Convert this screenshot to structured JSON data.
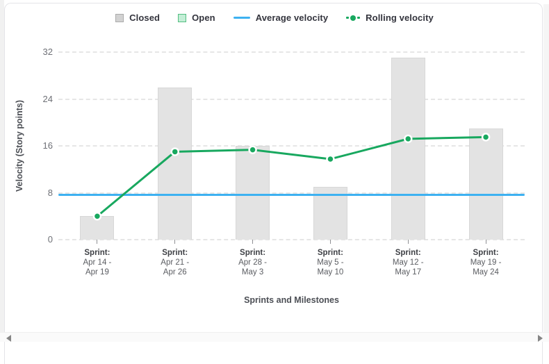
{
  "legend": {
    "items": [
      {
        "label": "Closed",
        "swatch": "gray-square",
        "fill": "#d2d2d2",
        "border": "#ababab"
      },
      {
        "label": "Open",
        "swatch": "green-square",
        "fill": "#c3eed6",
        "border": "#53be81"
      },
      {
        "label": "Average velocity",
        "swatch": "blue-line",
        "color": "#3db1f1"
      },
      {
        "label": "Rolling velocity",
        "swatch": "dash-dot",
        "color": "#18a85f"
      }
    ]
  },
  "chart_data": {
    "type": "bar",
    "title": "",
    "xlabel": "Sprints and Milestones",
    "ylabel": "Velocity (Story points)",
    "ylim": [
      0,
      32
    ],
    "yticks": [
      0,
      8,
      16,
      24,
      32
    ],
    "grid": true,
    "legend_position": "top",
    "categories": [
      [
        "Sprint:",
        "Apr 14 -",
        "Apr 19"
      ],
      [
        "Sprint:",
        "Apr 21 -",
        "Apr 26"
      ],
      [
        "Sprint:",
        "Apr 28 -",
        "May 3"
      ],
      [
        "Sprint:",
        "May 5 -",
        "May 10"
      ],
      [
        "Sprint:",
        "May 12 -",
        "May 17"
      ],
      [
        "Sprint:",
        "May 19 -",
        "May 24"
      ]
    ],
    "series": [
      {
        "name": "Closed",
        "type": "bar",
        "color": "#e3e3e3",
        "values": [
          4,
          26,
          16,
          9,
          31,
          19
        ]
      },
      {
        "name": "Open",
        "type": "bar",
        "color": "#c3eed6",
        "values": [
          0,
          0,
          0,
          0,
          0,
          0
        ]
      },
      {
        "name": "Average velocity",
        "type": "hline",
        "color": "#3db1f1",
        "value": 7.6
      },
      {
        "name": "Rolling velocity",
        "type": "line",
        "color": "#18a85f",
        "values": [
          4,
          15,
          15.33,
          13.75,
          17.2,
          17.5
        ]
      }
    ]
  },
  "icons": {
    "h_scroll_left": "left-triangle",
    "h_scroll_right": "right-triangle"
  }
}
